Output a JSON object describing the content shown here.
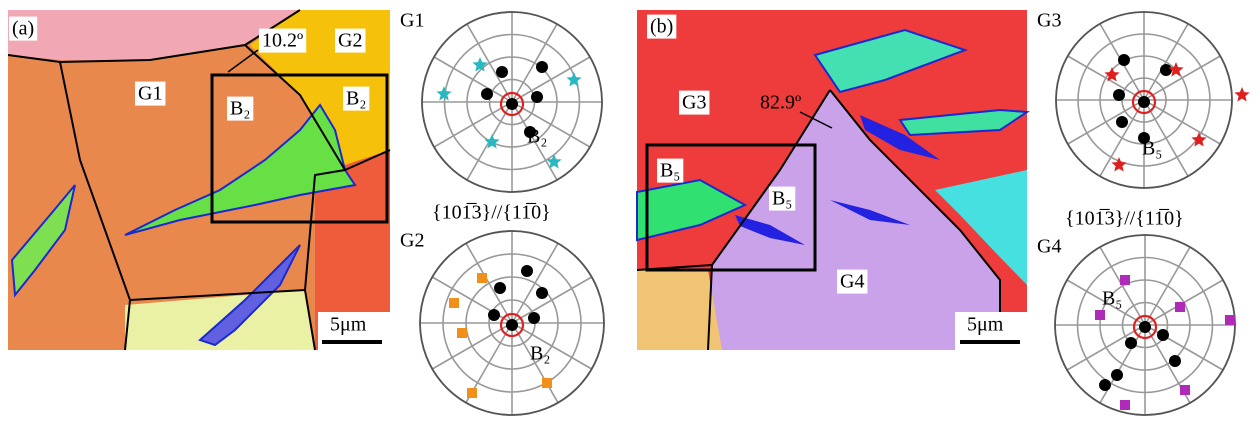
{
  "panels": [
    {
      "label": "(a)",
      "map": {
        "grains": [
          "G1",
          "G2"
        ],
        "misorientation": "10.2º",
        "twins": [
          "B₂",
          "B₂"
        ],
        "scale_bar": "5μm"
      },
      "pole_figures": [
        {
          "label": "G1",
          "marker": "B₂"
        },
        {
          "label": "G2",
          "marker": "B₂"
        }
      ],
      "plane_relation": "{101̅3}//{11̅0}"
    },
    {
      "label": "(b)",
      "map": {
        "grains": [
          "G3",
          "G4"
        ],
        "misorientation": "82.9º",
        "twins": [
          "B₅",
          "B₅"
        ],
        "scale_bar": "5μm"
      },
      "pole_figures": [
        {
          "label": "G3",
          "marker": "B₅"
        },
        {
          "label": "G4",
          "marker": "B₅"
        }
      ],
      "plane_relation": "{101̅3}//{11̅0}"
    }
  ]
}
